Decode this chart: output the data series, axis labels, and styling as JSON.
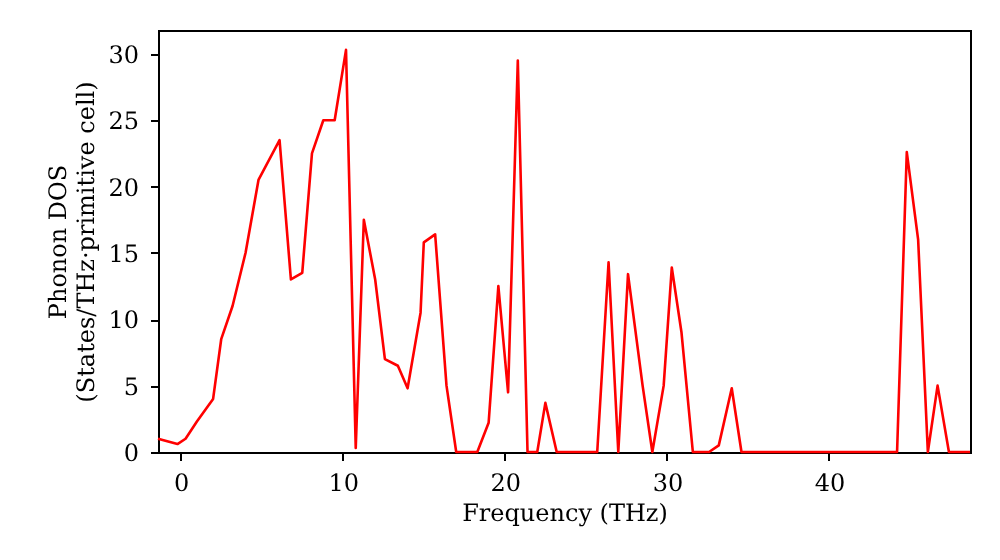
{
  "chart_data": {
    "type": "line",
    "xlabel": "Frequency (THz)",
    "ylabel": "Phonon DOS\n(States/THz·primitive cell)",
    "x": [
      -1.4,
      -0.2,
      0.3,
      1,
      2,
      2.5,
      3.2,
      4,
      4.8,
      6.1,
      6.8,
      7.5,
      8.1,
      8.8,
      9.5,
      10.2,
      10.8,
      11.3,
      12,
      12.6,
      13.4,
      14,
      14.8,
      15,
      15.7,
      16.4,
      17,
      18.3,
      19,
      19.6,
      20.2,
      20.8,
      21.4,
      22,
      22.5,
      23.2,
      25.7,
      26.4,
      27,
      27.6,
      28.5,
      29.1,
      29.8,
      30.3,
      30.9,
      31.6,
      32.6,
      33.2,
      34,
      34.6,
      44.2,
      44.8,
      45.5,
      46.1,
      46.7,
      47.4,
      48.7
    ],
    "series": [
      {
        "color": "#ff0000",
        "values": [
          1.0,
          0.6,
          1.0,
          2.3,
          4,
          8.5,
          11,
          15,
          20.5,
          23.5,
          13,
          13.5,
          22.5,
          25,
          25,
          30.3,
          0.3,
          17.5,
          13,
          7,
          6.5,
          4.8,
          10.5,
          15.8,
          16.4,
          5,
          0,
          0,
          2.2,
          12.5,
          4.5,
          29.5,
          0,
          0,
          3.7,
          0,
          0,
          14.3,
          0,
          13.4,
          5,
          0,
          5,
          13.9,
          9,
          0,
          0,
          0.5,
          4.8,
          0,
          0,
          22.6,
          16,
          0,
          5,
          0,
          0
        ]
      }
    ],
    "xlim": [
      -1.4,
      48.7
    ],
    "ylim": [
      0,
      31.8
    ],
    "xticks": [
      0,
      10,
      20,
      30,
      40
    ],
    "yticks": [
      0,
      5,
      10,
      15,
      20,
      25,
      30
    ],
    "grid": false
  }
}
